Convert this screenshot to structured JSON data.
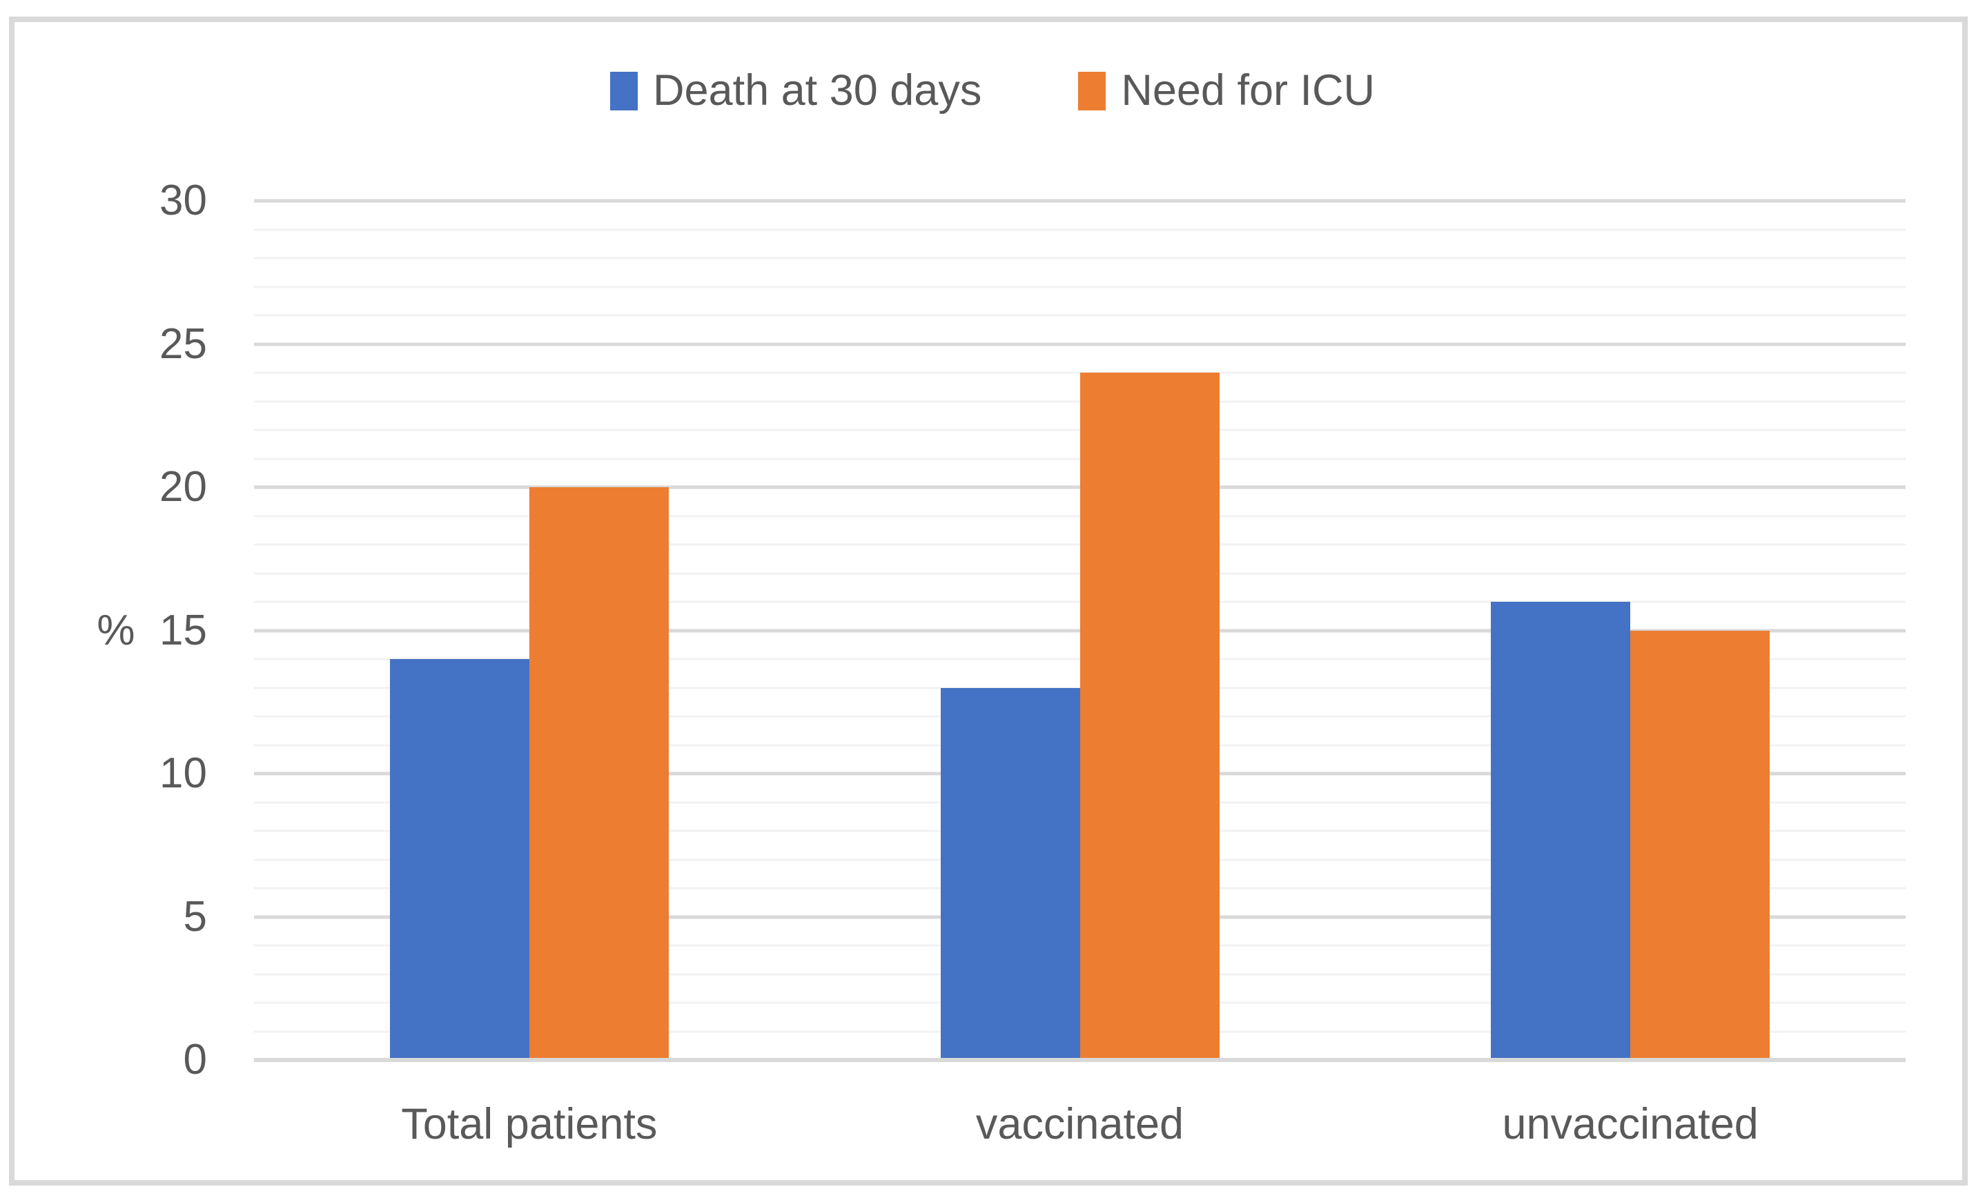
{
  "chart_data": {
    "type": "bar",
    "title": "",
    "categories": [
      "Total patients",
      "vaccinated",
      "unvaccinated"
    ],
    "series": [
      {
        "name": "Death at 30 days",
        "color": "#4472C4",
        "values": [
          14,
          13,
          16
        ]
      },
      {
        "name": "Need for ICU",
        "color": "#ED7D31",
        "values": [
          20,
          24,
          15
        ]
      }
    ],
    "xlabel": "",
    "ylabel": "%",
    "ylim": [
      0,
      30
    ],
    "yticks": [
      0,
      5,
      10,
      15,
      20,
      25,
      30
    ],
    "minor_unit": 1,
    "major_unit": 5,
    "grid": "horizontal-minor-and-major",
    "legend_position": "top-center"
  },
  "legend": {
    "items": [
      {
        "label": "Death at 30 days",
        "color": "#4472C4"
      },
      {
        "label": "Need for ICU",
        "color": "#ED7D31"
      }
    ]
  },
  "axes": {
    "y_title": "%",
    "y_tick_labels": [
      "0",
      "5",
      "10",
      "15",
      "20",
      "25",
      "30"
    ],
    "category_labels": [
      "Total patients",
      "vaccinated",
      "unvaccinated"
    ]
  },
  "colors": {
    "series_death": "#4472C4",
    "series_icu": "#ED7D31",
    "major_gridline": "#D9D9D9",
    "minor_gridline": "#F2F2F2",
    "axis_baseline": "#D9D9D9",
    "frame_border": "#D9D9D9",
    "text": "#595959",
    "background": "#FFFFFF"
  }
}
